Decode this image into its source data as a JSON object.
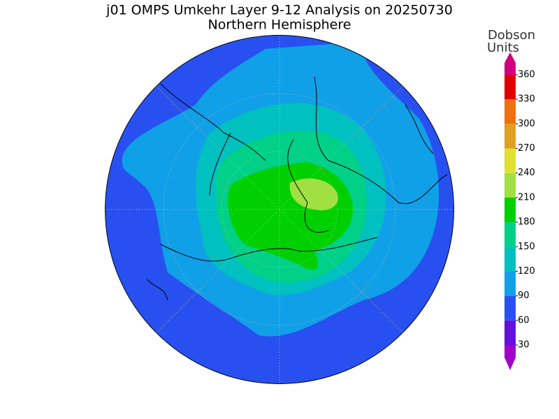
{
  "title": "j01 OMPS Umkehr Layer 9-12 Analysis on 20250730",
  "subtitle": "Northern Hemisphere",
  "colorbar": {
    "label_lines": [
      "Dobson",
      "Units"
    ],
    "ticks": [
      30,
      60,
      90,
      120,
      150,
      180,
      210,
      240,
      270,
      300,
      330,
      360
    ],
    "colors": [
      "#a000c8",
      "#6410d8",
      "#2850f0",
      "#10a0e8",
      "#00c0c0",
      "#00d088",
      "#00d000",
      "#a0e040",
      "#e0e030",
      "#e0a020",
      "#f07010",
      "#e00000",
      "#d00080"
    ]
  }
}
